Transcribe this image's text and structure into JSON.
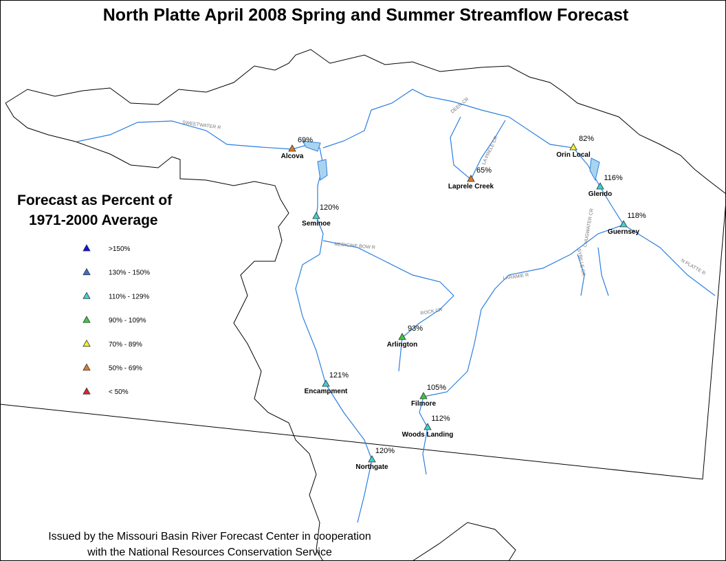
{
  "title": "North Platte April 2008 Spring and Summer Streamflow Forecast",
  "legend": {
    "title_line1": "Forecast as Percent of",
    "title_line2": "1971-2000 Average",
    "items": [
      {
        "label": ">150%",
        "color": "#1010e0"
      },
      {
        "label": "130% - 150%",
        "color": "#3a6fd8"
      },
      {
        "label": "110% - 129%",
        "color": "#3fd0d0"
      },
      {
        "label": "90% - 109%",
        "color": "#3cc83c"
      },
      {
        "label": "70% - 89%",
        "color": "#f0f030"
      },
      {
        "label": "50% - 69%",
        "color": "#e07a28"
      },
      {
        "label": "< 50%",
        "color": "#e02424"
      }
    ]
  },
  "stations": [
    {
      "name": "Alcova",
      "percent": "69%",
      "color": "#e07a28"
    },
    {
      "name": "Seminoe",
      "percent": "120%",
      "color": "#3fd0d0"
    },
    {
      "name": "Laprele Creek",
      "percent": "65%",
      "color": "#e07a28"
    },
    {
      "name": "Orin Local",
      "percent": "82%",
      "color": "#f0f030"
    },
    {
      "name": "Glendo",
      "percent": "116%",
      "color": "#3fd0d0"
    },
    {
      "name": "Guernsey",
      "percent": "118%",
      "color": "#3fd0d0"
    },
    {
      "name": "Arlington",
      "percent": "93%",
      "color": "#3cc83c"
    },
    {
      "name": "Encampment",
      "percent": "121%",
      "color": "#3fd0d0"
    },
    {
      "name": "Filmore",
      "percent": "105%",
      "color": "#3cc83c"
    },
    {
      "name": "Woods Landing",
      "percent": "112%",
      "color": "#3fd0d0"
    },
    {
      "name": "Northgate",
      "percent": "120%",
      "color": "#3fd0d0"
    }
  ],
  "rivers": [
    "SWEETWATER R",
    "DEER CR",
    "LA PRELE CR",
    "MEDICINE BOW R",
    "ROCK CR",
    "LARAMIE R",
    "SYBILLE CR",
    "CHUGWATER CR",
    "N PLATTE R"
  ],
  "footer": {
    "line1": "Issued by the Missouri Basin River Forecast Center in cooperation",
    "line2": "with the National Resources Conservation Service"
  }
}
